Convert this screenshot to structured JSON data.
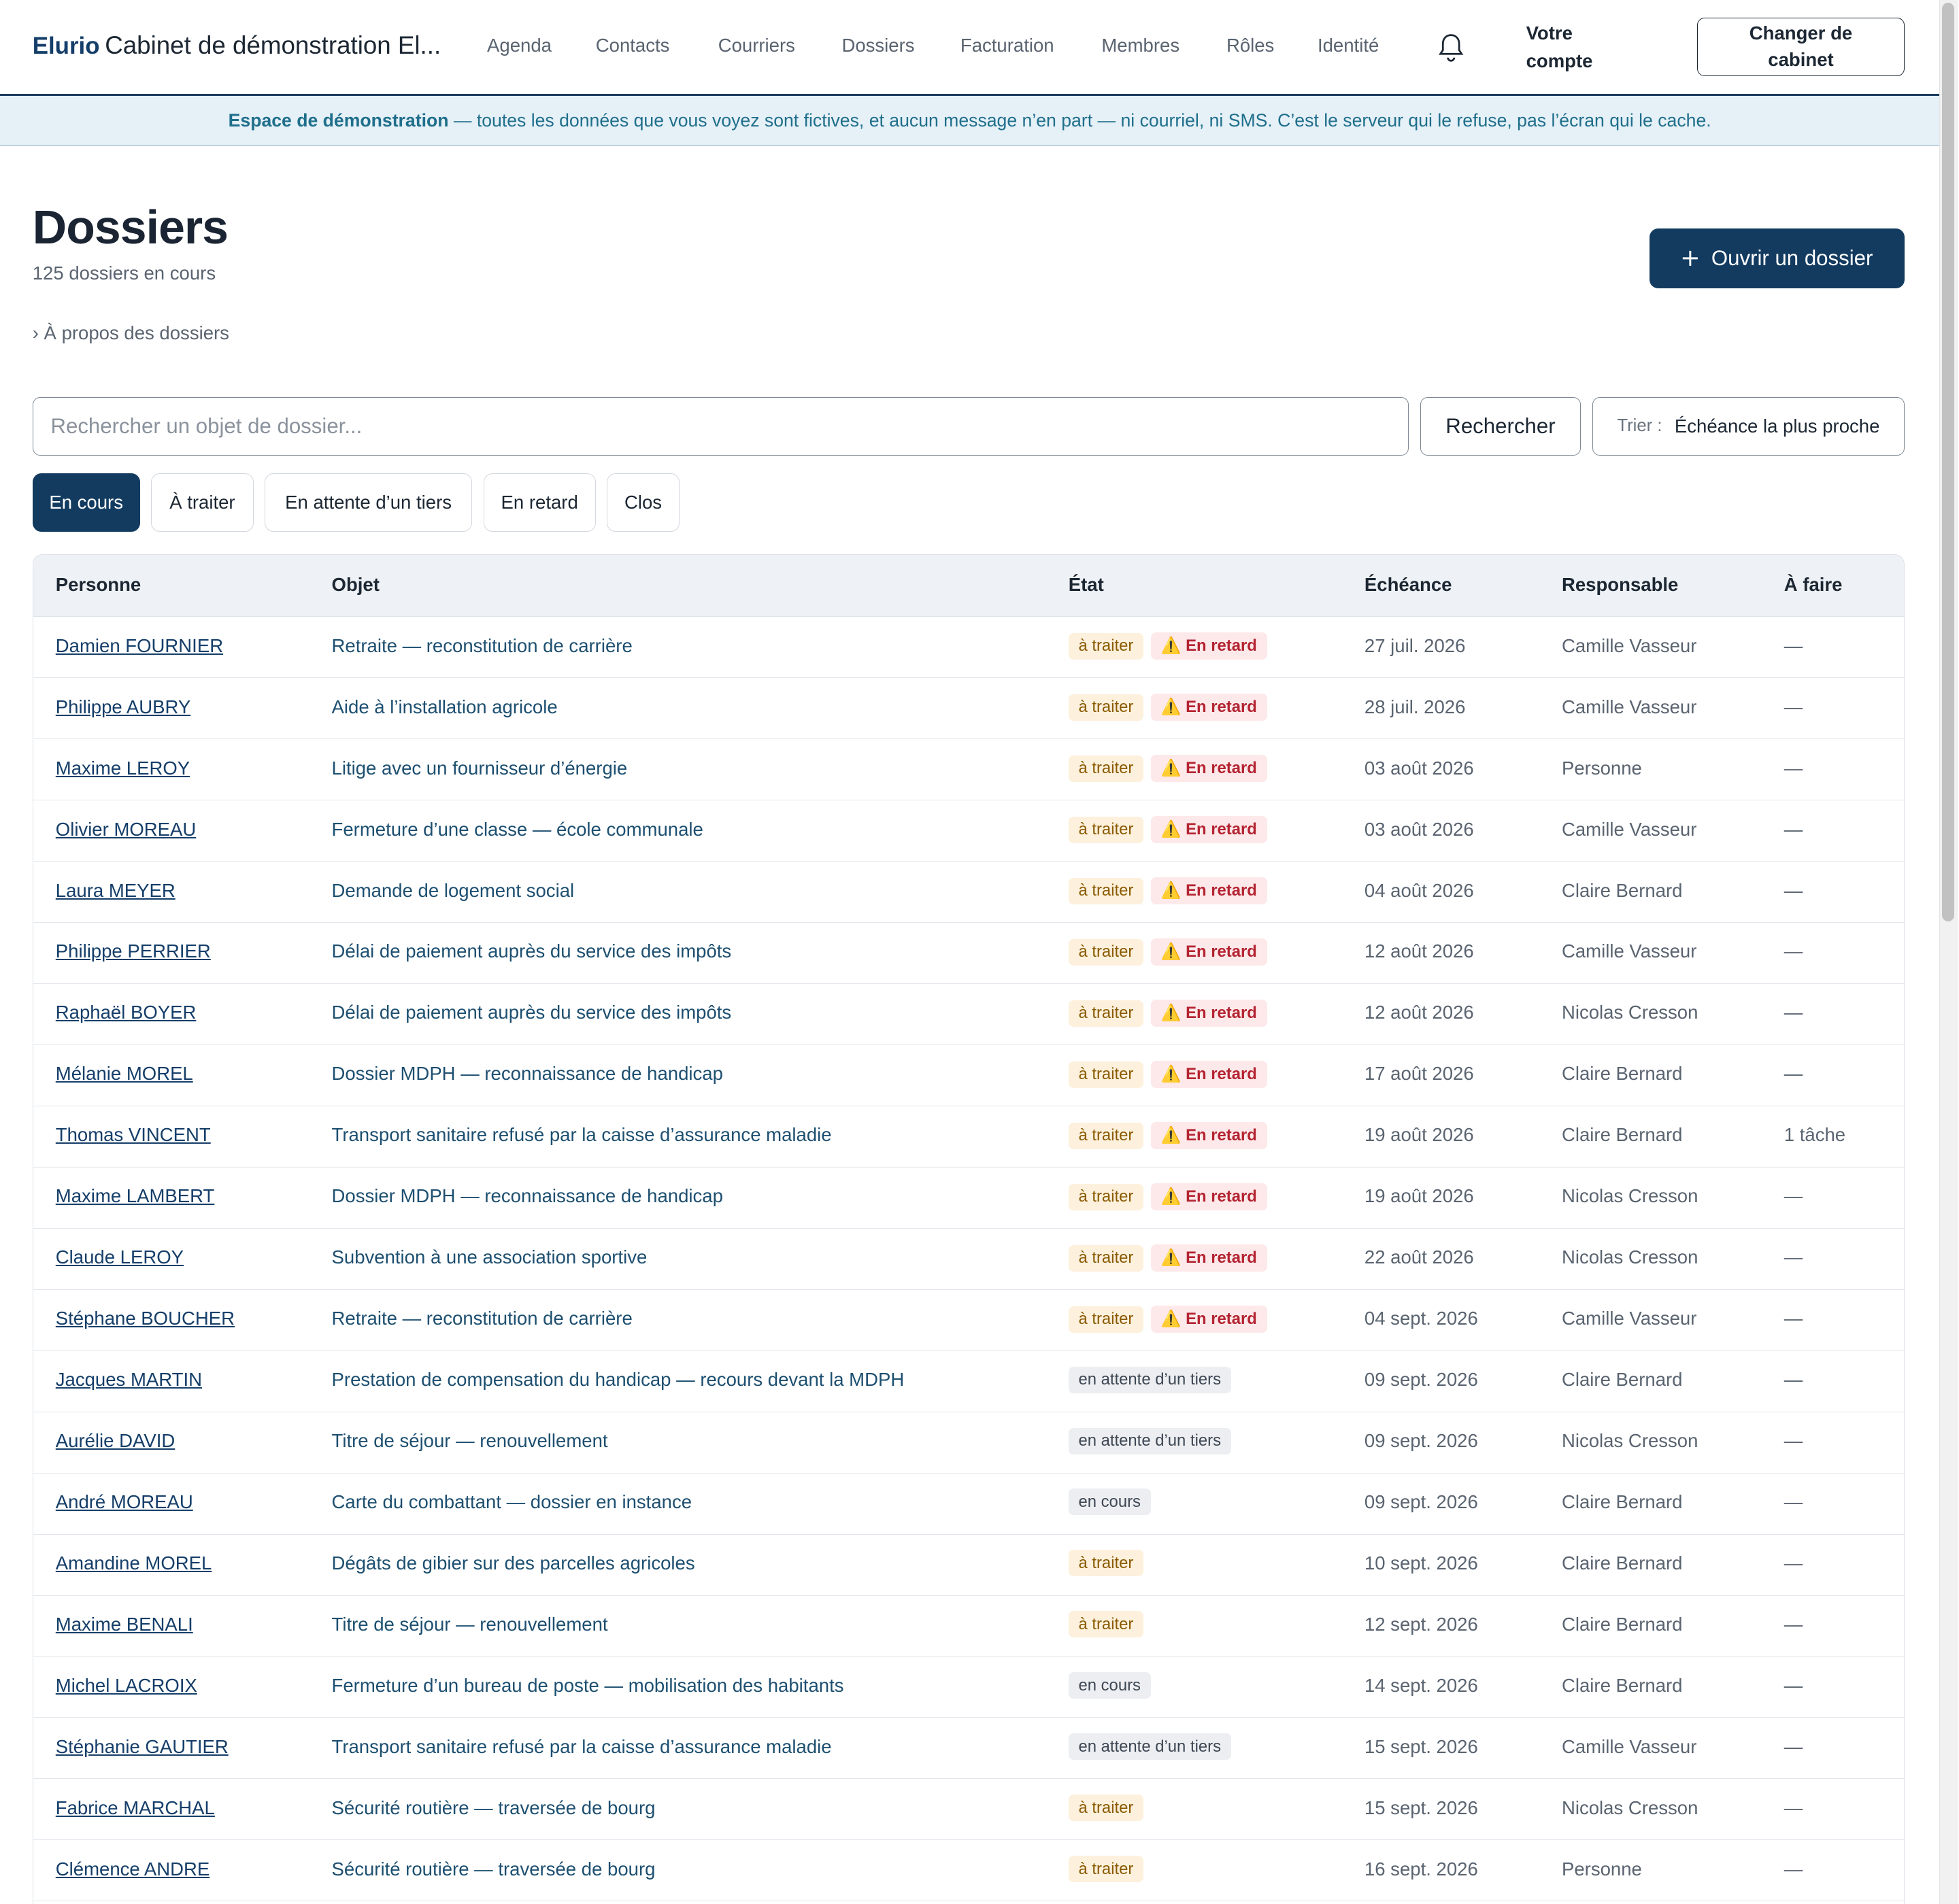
{
  "header": {
    "brand": "Elurio",
    "firm": "Cabinet de démonstration El...",
    "nav": [
      "Agenda",
      "Contacts",
      "Courriers",
      "Dossiers",
      "Facturation",
      "Membres",
      "Rôles",
      "Identité"
    ],
    "account": "Votre compte",
    "switch_button": "Changer de cabinet"
  },
  "banner": {
    "strong": "Espace de démonstration",
    "text": "— toutes les données que vous voyez sont fictives, et aucun message n’en part — ni courriel, ni SMS. C’est le serveur qui le refuse, pas l’écran qui le cache."
  },
  "page": {
    "title": "Dossiers",
    "subtitle": "125 dossiers en cours",
    "open_button": "Ouvrir un dossier",
    "about": "› À propos des dossiers"
  },
  "search": {
    "placeholder": "Rechercher un objet de dossier...",
    "button": "Rechercher",
    "sort_label": "Trier :",
    "sort_value": "Échéance la plus proche"
  },
  "tabs": [
    "En cours",
    "À traiter",
    "En attente d’un tiers",
    "En retard",
    "Clos"
  ],
  "table": {
    "columns": [
      "Personne",
      "Objet",
      "État",
      "Échéance",
      "Responsable",
      "À faire"
    ],
    "rows": [
      {
        "person": "Damien FOURNIER",
        "object": "Retraite — reconstitution de carrière",
        "states": [
          {
            "text": "à traiter",
            "color": "#8a5a00",
            "background": "#fdf1dd"
          },
          {
            "text": "⚠️ En retard",
            "color": "#b42331",
            "background": "#fde9ea"
          }
        ],
        "due": "27 juil. 2026",
        "owner": "Camille Vasseur",
        "todo": "—"
      },
      {
        "person": "Philippe AUBRY",
        "object": "Aide à l’installation agricole",
        "states": [
          {
            "text": "à traiter",
            "color": "#8a5a00",
            "background": "#fdf1dd"
          },
          {
            "text": "⚠️ En retard",
            "color": "#b42331",
            "background": "#fde9ea"
          }
        ],
        "due": "28 juil. 2026",
        "owner": "Camille Vasseur",
        "todo": "—"
      },
      {
        "person": "Maxime LEROY",
        "object": "Litige avec un fournisseur d’énergie",
        "states": [
          {
            "text": "à traiter",
            "color": "#8a5a00",
            "background": "#fdf1dd"
          },
          {
            "text": "⚠️ En retard",
            "color": "#b42331",
            "background": "#fde9ea"
          }
        ],
        "due": "03 août 2026",
        "owner": "Personne",
        "todo": "—"
      },
      {
        "person": "Olivier MOREAU",
        "object": "Fermeture d’une classe — école communale",
        "states": [
          {
            "text": "à traiter",
            "color": "#8a5a00",
            "background": "#fdf1dd"
          },
          {
            "text": "⚠️ En retard",
            "color": "#b42331",
            "background": "#fde9ea"
          }
        ],
        "due": "03 août 2026",
        "owner": "Camille Vasseur",
        "todo": "—"
      },
      {
        "person": "Laura MEYER",
        "object": "Demande de logement social",
        "states": [
          {
            "text": "à traiter",
            "color": "#8a5a00",
            "background": "#fdf1dd"
          },
          {
            "text": "⚠️ En retard",
            "color": "#b42331",
            "background": "#fde9ea"
          }
        ],
        "due": "04 août 2026",
        "owner": "Claire Bernard",
        "todo": "—"
      },
      {
        "person": "Philippe PERRIER",
        "object": "Délai de paiement auprès du service des impôts",
        "states": [
          {
            "text": "à traiter",
            "color": "#8a5a00",
            "background": "#fdf1dd"
          },
          {
            "text": "⚠️ En retard",
            "color": "#b42331",
            "background": "#fde9ea"
          }
        ],
        "due": "12 août 2026",
        "owner": "Camille Vasseur",
        "todo": "—"
      },
      {
        "person": "Raphaël BOYER",
        "object": "Délai de paiement auprès du service des impôts",
        "states": [
          {
            "text": "à traiter",
            "color": "#8a5a00",
            "background": "#fdf1dd"
          },
          {
            "text": "⚠️ En retard",
            "color": "#b42331",
            "background": "#fde9ea"
          }
        ],
        "due": "12 août 2026",
        "owner": "Nicolas Cresson",
        "todo": "—"
      },
      {
        "person": "Mélanie MOREL",
        "object": "Dossier MDPH — reconnaissance de handicap",
        "states": [
          {
            "text": "à traiter",
            "color": "#8a5a00",
            "background": "#fdf1dd"
          },
          {
            "text": "⚠️ En retard",
            "color": "#b42331",
            "background": "#fde9ea"
          }
        ],
        "due": "17 août 2026",
        "owner": "Claire Bernard",
        "todo": "—"
      },
      {
        "person": "Thomas VINCENT",
        "object": "Transport sanitaire refusé par la caisse d’assurance maladie",
        "states": [
          {
            "text": "à traiter",
            "color": "#8a5a00",
            "background": "#fdf1dd"
          },
          {
            "text": "⚠️ En retard",
            "color": "#b42331",
            "background": "#fde9ea"
          }
        ],
        "due": "19 août 2026",
        "owner": "Claire Bernard",
        "todo": "1 tâche"
      },
      {
        "person": "Maxime LAMBERT",
        "object": "Dossier MDPH — reconnaissance de handicap",
        "states": [
          {
            "text": "à traiter",
            "color": "#8a5a00",
            "background": "#fdf1dd"
          },
          {
            "text": "⚠️ En retard",
            "color": "#b42331",
            "background": "#fde9ea"
          }
        ],
        "due": "19 août 2026",
        "owner": "Nicolas Cresson",
        "todo": "—"
      },
      {
        "person": "Claude LEROY",
        "object": "Subvention à une association sportive",
        "states": [
          {
            "text": "à traiter",
            "color": "#8a5a00",
            "background": "#fdf1dd"
          },
          {
            "text": "⚠️ En retard",
            "color": "#b42331",
            "background": "#fde9ea"
          }
        ],
        "due": "22 août 2026",
        "owner": "Nicolas Cresson",
        "todo": "—"
      },
      {
        "person": "Stéphane BOUCHER",
        "object": "Retraite — reconstitution de carrière",
        "states": [
          {
            "text": "à traiter",
            "color": "#8a5a00",
            "background": "#fdf1dd"
          },
          {
            "text": "⚠️ En retard",
            "color": "#b42331",
            "background": "#fde9ea"
          }
        ],
        "due": "04 sept. 2026",
        "owner": "Camille Vasseur",
        "todo": "—"
      },
      {
        "person": "Jacques MARTIN",
        "object": "Prestation de compensation du handicap — recours devant la MDPH",
        "states": [
          {
            "text": "en attente d’un tiers",
            "color": "#3d4653",
            "background": "#eceef1"
          }
        ],
        "due": "09 sept. 2026",
        "owner": "Claire Bernard",
        "todo": "—"
      },
      {
        "person": "Aurélie DAVID",
        "object": "Titre de séjour — renouvellement",
        "states": [
          {
            "text": "en attente d’un tiers",
            "color": "#3d4653",
            "background": "#eceef1"
          }
        ],
        "due": "09 sept. 2026",
        "owner": "Nicolas Cresson",
        "todo": "—"
      },
      {
        "person": "André MOREAU",
        "object": "Carte du combattant — dossier en instance",
        "states": [
          {
            "text": "en cours",
            "color": "#3d4653",
            "background": "#eceef1"
          }
        ],
        "due": "09 sept. 2026",
        "owner": "Claire Bernard",
        "todo": "—"
      },
      {
        "person": "Amandine MOREL",
        "object": "Dégâts de gibier sur des parcelles agricoles",
        "states": [
          {
            "text": "à traiter",
            "color": "#8a5a00",
            "background": "#fdf1dd"
          }
        ],
        "due": "10 sept. 2026",
        "owner": "Claire Bernard",
        "todo": "—"
      },
      {
        "person": "Maxime BENALI",
        "object": "Titre de séjour — renouvellement",
        "states": [
          {
            "text": "à traiter",
            "color": "#8a5a00",
            "background": "#fdf1dd"
          }
        ],
        "due": "12 sept. 2026",
        "owner": "Claire Bernard",
        "todo": "—"
      },
      {
        "person": "Michel LACROIX",
        "object": "Fermeture d’un bureau de poste — mobilisation des habitants",
        "states": [
          {
            "text": "en cours",
            "color": "#3d4653",
            "background": "#eceef1"
          }
        ],
        "due": "14 sept. 2026",
        "owner": "Claire Bernard",
        "todo": "—"
      },
      {
        "person": "Stéphanie GAUTIER",
        "object": "Transport sanitaire refusé par la caisse d’assurance maladie",
        "states": [
          {
            "text": "en attente d’un tiers",
            "color": "#3d4653",
            "background": "#eceef1"
          }
        ],
        "due": "15 sept. 2026",
        "owner": "Camille Vasseur",
        "todo": "—"
      },
      {
        "person": "Fabrice MARCHAL",
        "object": "Sécurité routière — traversée de bourg",
        "states": [
          {
            "text": "à traiter",
            "color": "#8a5a00",
            "background": "#fdf1dd"
          }
        ],
        "due": "15 sept. 2026",
        "owner": "Nicolas Cresson",
        "todo": "—"
      },
      {
        "person": "Clémence ANDRE",
        "object": "Sécurité routière — traversée de bourg",
        "states": [
          {
            "text": "à traiter",
            "color": "#8a5a00",
            "background": "#fdf1dd"
          }
        ],
        "due": "16 sept. 2026",
        "owner": "Personne",
        "todo": "—"
      }
    ]
  }
}
